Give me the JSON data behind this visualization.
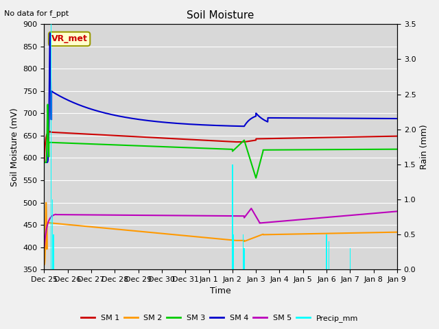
{
  "title": "Soil Moisture",
  "annotation": "No data for f_ppt",
  "legend_label": "VR_met",
  "xlabel": "Time",
  "ylabel_left": "Soil Moisture (mV)",
  "ylabel_right": "Rain (mm)",
  "ylim_left": [
    350,
    900
  ],
  "ylim_right": [
    0.0,
    3.5
  ],
  "tick_labels": [
    "Dec 25",
    "Dec 26",
    "Dec 27",
    "Dec 28",
    "Dec 29",
    "Dec 30",
    "Dec 31",
    "Jan 1",
    "Jan 2",
    "Jan 3",
    "Jan 4",
    "Jan 5",
    "Jan 6",
    "Jan 7",
    "Jan 8",
    "Jan 9"
  ],
  "sm1_color": "#cc0000",
  "sm2_color": "#ff9900",
  "sm3_color": "#00cc00",
  "sm4_color": "#0000cc",
  "sm5_color": "#bb00bb",
  "precip_color": "#00ffff",
  "legend_items": [
    "SM 1",
    "SM 2",
    "SM 3",
    "SM 4",
    "SM 5",
    "Precip_mm"
  ],
  "legend_colors": [
    "#cc0000",
    "#ff9900",
    "#00cc00",
    "#0000cc",
    "#bb00bb",
    "#00ffff"
  ],
  "fig_bg": "#f0f0f0",
  "axes_bg": "#d8d8d8",
  "grid_color": "#ffffff"
}
